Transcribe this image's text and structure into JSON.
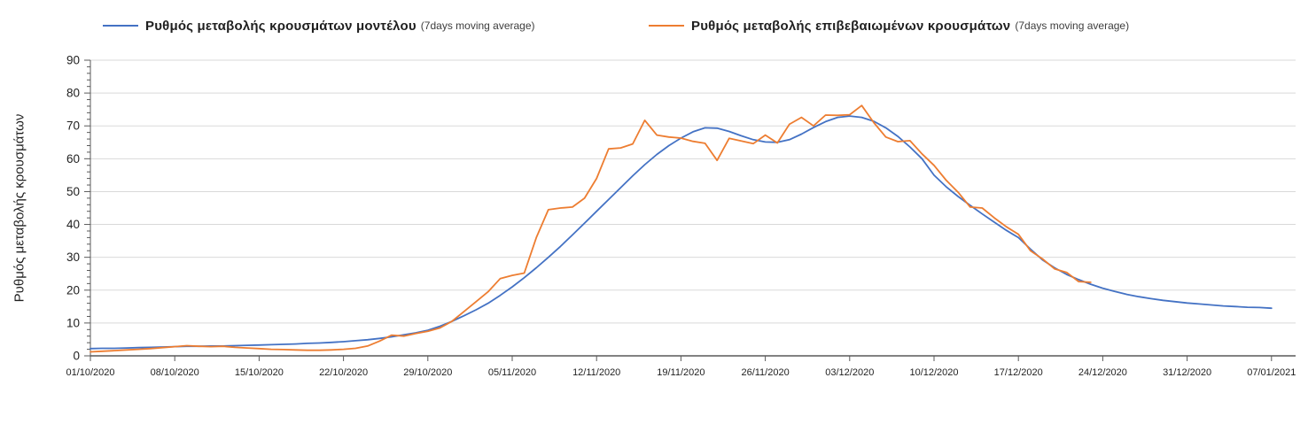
{
  "legend": {
    "items": [
      {
        "label": "Ρυθμός μεταβολής κρουσμάτων μοντέλου",
        "suffix": "(7days moving average)",
        "color": "#4472c4"
      },
      {
        "label": "Ρυθμός μεταβολής επιβεβαιωμένων κρουσμάτων",
        "suffix": "(7days moving average)",
        "color": "#ed7d31"
      }
    ]
  },
  "chart_data": {
    "type": "line",
    "title": "",
    "xlabel": "",
    "ylabel": "Ρυθμός μεταβολής κρουσμάτων",
    "ylim": [
      0,
      90
    ],
    "ytick_interval": 10,
    "yminor_interval": 2,
    "grid": true,
    "legend_position": "top",
    "x_unit": "day",
    "days_per_tick": 7,
    "x_tick_labels": [
      "01/10/2020",
      "08/10/2020",
      "15/10/2020",
      "22/10/2020",
      "29/10/2020",
      "05/11/2020",
      "12/11/2020",
      "19/11/2020",
      "26/11/2020",
      "03/12/2020",
      "10/12/2020",
      "17/12/2020",
      "24/12/2020",
      "31/12/2020",
      "07/01/2021"
    ],
    "axis_color": "#595959",
    "grid_color": "#d9d9d9",
    "series": [
      {
        "name": "Ρυθμός μεταβολής κρουσμάτων μοντέλου (7days moving average)",
        "color": "#4472c4",
        "start_date": "01/10/2020",
        "values": [
          2.2,
          2.3,
          2.3,
          2.4,
          2.5,
          2.6,
          2.7,
          2.8,
          2.9,
          2.9,
          3.0,
          3.0,
          3.1,
          3.2,
          3.3,
          3.4,
          3.5,
          3.6,
          3.8,
          3.9,
          4.1,
          4.3,
          4.6,
          4.9,
          5.3,
          5.8,
          6.4,
          7.0,
          7.8,
          9.0,
          10.5,
          12.2,
          14.0,
          16.0,
          18.4,
          21.0,
          23.8,
          26.8,
          30.0,
          33.3,
          36.8,
          40.4,
          44.0,
          47.6,
          51.2,
          54.8,
          58.2,
          61.3,
          64.0,
          66.3,
          68.2,
          69.4,
          69.3,
          68.3,
          67.0,
          65.8,
          65.1,
          65.0,
          65.8,
          67.5,
          69.5,
          71.3,
          72.6,
          73.0,
          72.6,
          71.4,
          69.4,
          66.8,
          63.6,
          60.0,
          55.0,
          51.5,
          48.5,
          45.8,
          43.2,
          40.7,
          38.2,
          36.0,
          32.5,
          29.2,
          26.8,
          24.8,
          23.2,
          21.8,
          20.6,
          19.6,
          18.7,
          18.0,
          17.4,
          16.9,
          16.5,
          16.1,
          15.8,
          15.5,
          15.2,
          15.0,
          14.8,
          14.7,
          14.5
        ]
      },
      {
        "name": "Ρυθμός μεταβολής επιβεβαιωμένων κρουσμάτων (7days moving average)",
        "color": "#ed7d31",
        "start_date": "01/10/2020",
        "values": [
          1.2,
          1.4,
          1.6,
          1.8,
          2.0,
          2.2,
          2.5,
          2.8,
          3.1,
          2.9,
          2.8,
          2.9,
          2.6,
          2.4,
          2.2,
          2.0,
          1.9,
          1.8,
          1.7,
          1.7,
          1.8,
          2.0,
          2.3,
          3.0,
          4.5,
          6.3,
          6.0,
          6.8,
          7.5,
          8.5,
          10.5,
          13.5,
          16.5,
          19.5,
          23.5,
          24.5,
          25.2,
          36.0,
          44.5,
          45.0,
          45.3,
          48.0,
          54.0,
          63.0,
          63.3,
          64.5,
          71.7,
          67.2,
          66.6,
          66.3,
          65.3,
          64.7,
          59.5,
          66.2,
          65.4,
          64.6,
          67.2,
          64.8,
          70.5,
          72.6,
          70.0,
          73.3,
          73.2,
          73.4,
          76.2,
          71.0,
          66.6,
          65.2,
          65.5,
          61.5,
          58.0,
          53.5,
          49.8,
          45.3,
          45.0,
          42.0,
          39.3,
          37.0,
          32.0,
          29.5,
          26.5,
          25.4,
          22.6,
          22.4
        ]
      }
    ]
  }
}
